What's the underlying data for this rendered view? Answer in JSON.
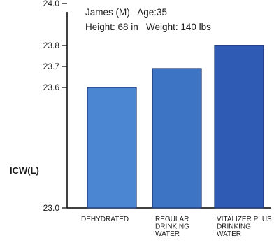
{
  "chart_data": {
    "type": "bar",
    "title": "",
    "info_lines": [
      "James (M)   Age:35",
      "Height: 68 in   Weight: 140 lbs"
    ],
    "xlabel": "",
    "ylabel": "ICW(L)",
    "ylim": [
      23.0,
      24.0
    ],
    "yticks": [
      "23.0",
      "23.6",
      "23.7",
      "23.8",
      "24.0"
    ],
    "categories": [
      [
        "DEHYDRATED"
      ],
      [
        "REGULAR",
        "DRINKING",
        "WATER"
      ],
      [
        "VITALIZER PLUS",
        "DRINKING",
        "WATER"
      ]
    ],
    "values": [
      23.6,
      23.69,
      23.8
    ],
    "bar_colors": [
      "#4a86d2",
      "#3d74c4",
      "#2f5bb5"
    ],
    "bar_edge": "#1c3470",
    "axis_color": "#000000",
    "grid": false,
    "legend": "none"
  }
}
